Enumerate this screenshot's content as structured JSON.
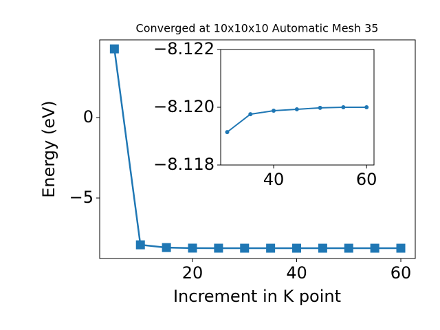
{
  "chart_data": [
    {
      "type": "line",
      "title": "Converged at 10x10x10 Automatic Mesh 35",
      "x_label": "Increment in K point",
      "y_label": "Energy (eV)",
      "x": [
        5,
        10,
        15,
        20,
        25,
        30,
        35,
        40,
        45,
        50,
        55,
        60
      ],
      "series": [
        {
          "color": "#1f77b4",
          "marker": "square",
          "values": [
            4.27,
            -7.91,
            -8.08,
            -8.115,
            -8.118,
            -8.11914,
            -8.11976,
            -8.11988,
            -8.11993,
            -8.11998,
            -8.12,
            -8.12
          ]
        }
      ],
      "xlim": [
        2.18,
        62.77
      ],
      "xticks": [
        20,
        40,
        60
      ],
      "ylim": [
        -8.76,
        4.83
      ],
      "yticks": [
        0,
        {
          "value": -5,
          "label": "−5"
        }
      ]
    },
    {
      "type": "line",
      "x": [
        30,
        35,
        40,
        45,
        50,
        55,
        60
      ],
      "series": [
        {
          "color": "#1f77b4",
          "marker": "circle",
          "values": [
            -8.11914,
            -8.11976,
            -8.11988,
            -8.11993,
            -8.11998,
            -8.12,
            -8.12
          ]
        }
      ],
      "xlim": [
        28.6,
        61.6
      ],
      "xticks": [
        40,
        60
      ],
      "ylim": [
        -8.118,
        -8.122
      ],
      "yticks": [
        {
          "value": -8.122,
          "label": "−8.122"
        },
        {
          "value": -8.12,
          "label": "−8.120"
        },
        {
          "value": -8.118,
          "label": "−8.118"
        }
      ]
    }
  ]
}
